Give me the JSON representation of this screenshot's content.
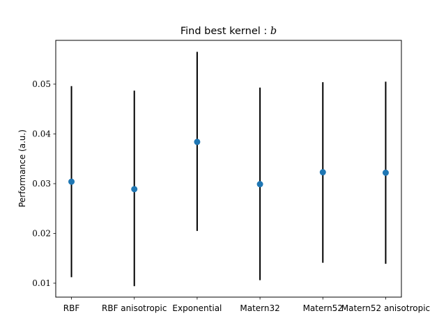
{
  "chart_data": {
    "type": "scatter",
    "title": "Find best kernel : ",
    "title_var": "b",
    "xlabel": "",
    "ylabel": "Performance (a.u.)",
    "categories": [
      "RBF",
      "RBF anisotropic",
      "Exponential",
      "Matern32",
      "Matern52",
      "Matern52 anisotropic"
    ],
    "values": [
      0.0304,
      0.0289,
      0.0384,
      0.0299,
      0.0323,
      0.0322
    ],
    "error_low": [
      0.0112,
      0.0094,
      0.0205,
      0.0106,
      0.0141,
      0.0139
    ],
    "error_high": [
      0.0496,
      0.0487,
      0.0565,
      0.0493,
      0.0504,
      0.0505
    ],
    "yticks": [
      0.01,
      0.02,
      0.03,
      0.04,
      0.05
    ],
    "ytick_labels": [
      "0.01",
      "0.02",
      "0.03",
      "0.04",
      "0.05"
    ],
    "ylim": [
      0.0072,
      0.0588
    ],
    "grid": false,
    "marker_color": "#1f77b4",
    "errorbar_color": "#000000"
  }
}
